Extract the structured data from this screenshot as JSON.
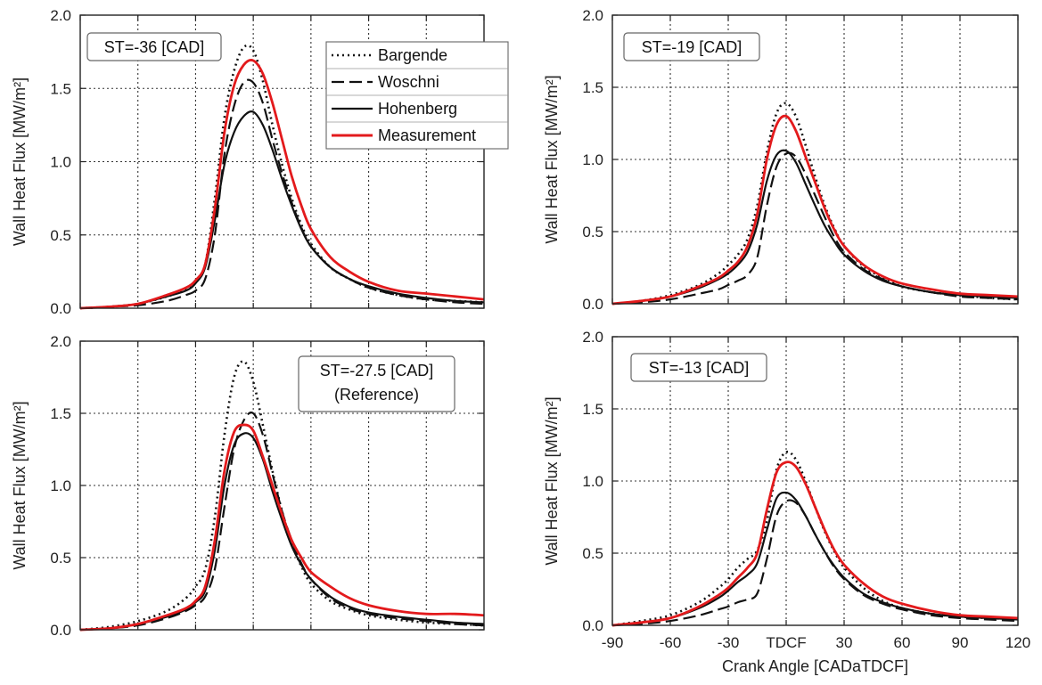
{
  "chart_data": {
    "type": "line",
    "xlabel": "Crank Angle [CADaTDCF]",
    "ylabel": "Wall Heat Flux [MW/m²]",
    "xlim": [
      -90,
      120
    ],
    "ylim": [
      0,
      2.0
    ],
    "x_ticks": [
      "-90",
      "-60",
      "-30",
      "TDCF",
      "30",
      "60",
      "90",
      "120"
    ],
    "y_ticks": [
      "0.0",
      "0.5",
      "1.0",
      "1.5",
      "2.0"
    ],
    "grid": true,
    "legend": {
      "placement": "top-right of first panel",
      "entries": [
        "Bargende",
        "Woschni",
        "Hohenberg",
        "Measurement"
      ]
    },
    "series_styles": [
      {
        "name": "Bargende",
        "color": "#111111",
        "dash": "dotted"
      },
      {
        "name": "Woschni",
        "color": "#111111",
        "dash": "dashed"
      },
      {
        "name": "Hohenberg",
        "color": "#111111",
        "dash": "solid"
      },
      {
        "name": "Measurement",
        "color": "#e31a1c",
        "dash": "solid"
      }
    ],
    "panels": [
      {
        "annotation": [
          "ST=-36 [CAD]"
        ],
        "x": [
          -90,
          -75,
          -60,
          -45,
          -35,
          -30,
          -25,
          -20,
          -15,
          -10,
          -5,
          0,
          5,
          10,
          15,
          20,
          25,
          30,
          40,
          50,
          60,
          75,
          90,
          105,
          120
        ],
        "series": [
          {
            "name": "Bargende",
            "values": [
              0.0,
              0.01,
              0.03,
              0.08,
              0.13,
              0.18,
              0.3,
              0.75,
              1.3,
              1.62,
              1.78,
              1.76,
              1.55,
              1.25,
              0.98,
              0.75,
              0.57,
              0.44,
              0.28,
              0.2,
              0.14,
              0.09,
              0.06,
              0.05,
              0.04
            ]
          },
          {
            "name": "Woschni",
            "values": [
              0.0,
              0.01,
              0.02,
              0.05,
              0.09,
              0.12,
              0.2,
              0.5,
              1.05,
              1.38,
              1.54,
              1.54,
              1.4,
              1.15,
              0.92,
              0.72,
              0.55,
              0.42,
              0.28,
              0.2,
              0.14,
              0.09,
              0.06,
              0.04,
              0.03
            ]
          },
          {
            "name": "Hohenberg",
            "values": [
              0.0,
              0.01,
              0.03,
              0.08,
              0.12,
              0.17,
              0.28,
              0.6,
              0.98,
              1.2,
              1.31,
              1.34,
              1.25,
              1.08,
              0.88,
              0.7,
              0.54,
              0.42,
              0.28,
              0.2,
              0.15,
              0.1,
              0.07,
              0.05,
              0.04
            ]
          },
          {
            "name": "Measurement",
            "values": [
              0.0,
              0.01,
              0.03,
              0.09,
              0.14,
              0.19,
              0.3,
              0.68,
              1.2,
              1.52,
              1.66,
              1.69,
              1.6,
              1.4,
              1.15,
              0.9,
              0.7,
              0.54,
              0.35,
              0.25,
              0.18,
              0.12,
              0.1,
              0.08,
              0.06
            ]
          }
        ]
      },
      {
        "annotation": [
          "ST=-27.5 [CAD]",
          "(Reference)"
        ],
        "x": [
          -90,
          -75,
          -60,
          -45,
          -35,
          -30,
          -25,
          -20,
          -15,
          -10,
          -5,
          0,
          5,
          10,
          15,
          20,
          25,
          30,
          40,
          50,
          60,
          75,
          90,
          105,
          120
        ],
        "series": [
          {
            "name": "Bargende",
            "values": [
              0.0,
              0.02,
              0.06,
              0.13,
              0.22,
              0.3,
              0.42,
              0.78,
              1.35,
              1.75,
              1.86,
              1.72,
              1.42,
              1.1,
              0.82,
              0.6,
              0.44,
              0.32,
              0.2,
              0.14,
              0.1,
              0.07,
              0.05,
              0.04,
              0.03
            ]
          },
          {
            "name": "Woschni",
            "values": [
              0.0,
              0.01,
              0.03,
              0.08,
              0.13,
              0.17,
              0.23,
              0.42,
              0.85,
              1.25,
              1.45,
              1.5,
              1.35,
              1.08,
              0.82,
              0.62,
              0.46,
              0.35,
              0.22,
              0.15,
              0.11,
              0.08,
              0.06,
              0.04,
              0.03
            ]
          },
          {
            "name": "Hohenberg",
            "values": [
              0.0,
              0.01,
              0.04,
              0.09,
              0.14,
              0.19,
              0.27,
              0.55,
              1.0,
              1.28,
              1.36,
              1.33,
              1.18,
              0.96,
              0.76,
              0.58,
              0.45,
              0.35,
              0.23,
              0.16,
              0.12,
              0.09,
              0.07,
              0.05,
              0.04
            ]
          },
          {
            "name": "Measurement",
            "values": [
              0.0,
              0.01,
              0.04,
              0.1,
              0.15,
              0.2,
              0.3,
              0.62,
              1.1,
              1.37,
              1.42,
              1.38,
              1.2,
              1.0,
              0.8,
              0.62,
              0.5,
              0.4,
              0.3,
              0.22,
              0.17,
              0.13,
              0.11,
              0.11,
              0.1
            ]
          }
        ]
      },
      {
        "annotation": [
          "ST=-19 [CAD]"
        ],
        "x": [
          -90,
          -75,
          -60,
          -45,
          -35,
          -30,
          -25,
          -20,
          -15,
          -10,
          -5,
          0,
          5,
          10,
          15,
          20,
          25,
          30,
          40,
          50,
          60,
          75,
          90,
          105,
          120
        ],
        "series": [
          {
            "name": "Bargende",
            "values": [
              0.0,
              0.02,
              0.06,
              0.13,
              0.21,
              0.27,
              0.34,
              0.45,
              0.68,
              1.05,
              1.32,
              1.39,
              1.3,
              1.1,
              0.88,
              0.68,
              0.52,
              0.4,
              0.26,
              0.18,
              0.12,
              0.08,
              0.06,
              0.04,
              0.03
            ]
          },
          {
            "name": "Woschni",
            "values": [
              0.0,
              0.01,
              0.03,
              0.07,
              0.1,
              0.13,
              0.16,
              0.2,
              0.32,
              0.68,
              0.95,
              1.04,
              1.02,
              0.9,
              0.75,
              0.6,
              0.46,
              0.36,
              0.24,
              0.17,
              0.12,
              0.08,
              0.05,
              0.04,
              0.03
            ]
          },
          {
            "name": "Hohenberg",
            "values": [
              0.0,
              0.02,
              0.05,
              0.11,
              0.17,
              0.21,
              0.27,
              0.36,
              0.55,
              0.85,
              1.03,
              1.06,
              0.98,
              0.83,
              0.68,
              0.54,
              0.43,
              0.34,
              0.23,
              0.16,
              0.12,
              0.08,
              0.06,
              0.05,
              0.04
            ]
          },
          {
            "name": "Measurement",
            "values": [
              0.0,
              0.02,
              0.05,
              0.12,
              0.18,
              0.23,
              0.29,
              0.4,
              0.62,
              1.0,
              1.24,
              1.3,
              1.2,
              1.02,
              0.84,
              0.66,
              0.51,
              0.4,
              0.27,
              0.19,
              0.14,
              0.1,
              0.07,
              0.06,
              0.05
            ]
          }
        ]
      },
      {
        "annotation": [
          "ST=-13 [CAD]"
        ],
        "x": [
          -90,
          -75,
          -60,
          -45,
          -35,
          -30,
          -25,
          -20,
          -15,
          -10,
          -5,
          0,
          5,
          10,
          15,
          20,
          25,
          30,
          40,
          50,
          60,
          75,
          90,
          105,
          120
        ],
        "series": [
          {
            "name": "Bargende",
            "values": [
              0.0,
              0.03,
              0.07,
              0.16,
              0.26,
              0.32,
              0.4,
              0.46,
              0.52,
              0.72,
              1.08,
              1.2,
              1.15,
              1.0,
              0.82,
              0.65,
              0.51,
              0.4,
              0.26,
              0.17,
              0.12,
              0.08,
              0.06,
              0.05,
              0.04
            ]
          },
          {
            "name": "Woschni",
            "values": [
              0.0,
              0.01,
              0.03,
              0.07,
              0.11,
              0.13,
              0.16,
              0.18,
              0.22,
              0.46,
              0.76,
              0.86,
              0.85,
              0.76,
              0.63,
              0.51,
              0.4,
              0.32,
              0.21,
              0.15,
              0.11,
              0.07,
              0.05,
              0.04,
              0.03
            ]
          },
          {
            "name": "Hohenberg",
            "values": [
              0.0,
              0.02,
              0.05,
              0.12,
              0.19,
              0.24,
              0.3,
              0.35,
              0.43,
              0.66,
              0.88,
              0.92,
              0.87,
              0.76,
              0.63,
              0.51,
              0.41,
              0.33,
              0.22,
              0.16,
              0.12,
              0.08,
              0.06,
              0.05,
              0.04
            ]
          },
          {
            "name": "Measurement",
            "values": [
              0.0,
              0.02,
              0.05,
              0.13,
              0.21,
              0.26,
              0.33,
              0.4,
              0.5,
              0.8,
              1.06,
              1.13,
              1.1,
              0.98,
              0.82,
              0.66,
              0.52,
              0.42,
              0.29,
              0.2,
              0.15,
              0.1,
              0.07,
              0.06,
              0.05
            ]
          }
        ]
      }
    ]
  }
}
